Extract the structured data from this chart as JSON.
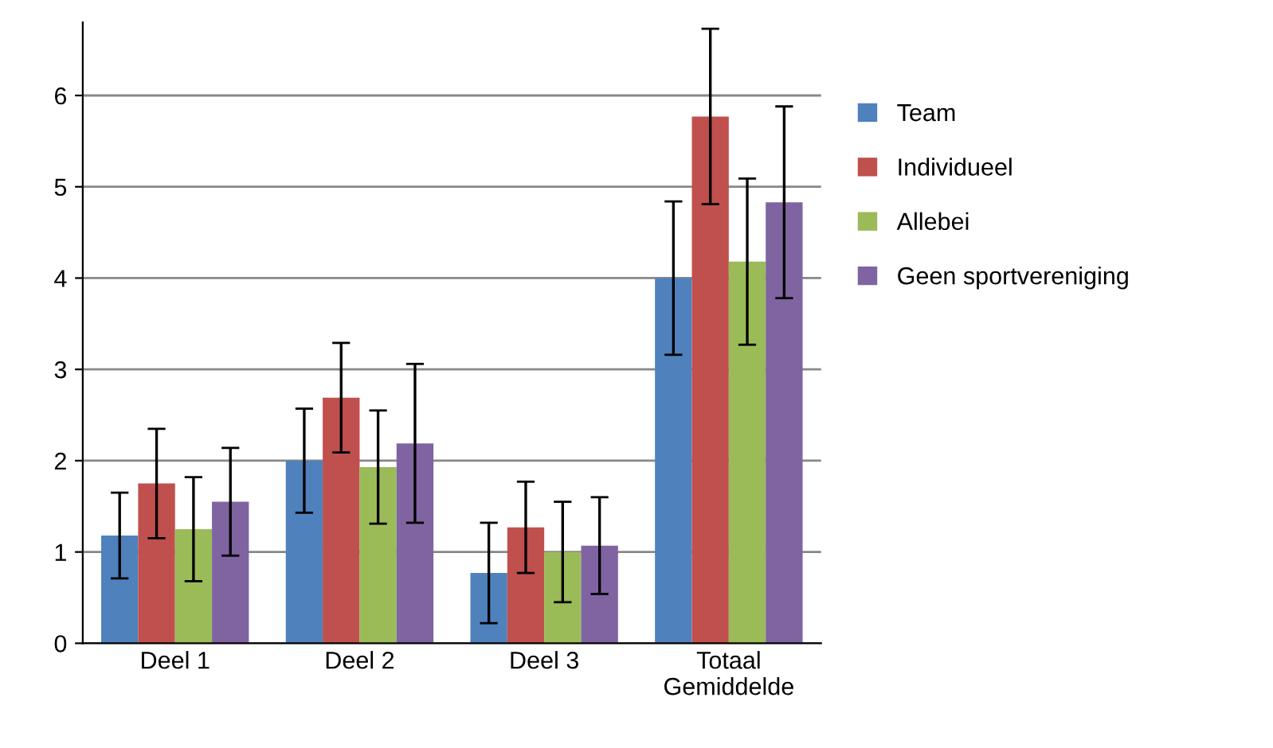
{
  "chart_data": {
    "type": "bar",
    "categories": [
      "Deel 1",
      "Deel 2",
      "Deel 3",
      "Totaal\nGemiddelde"
    ],
    "series": [
      {
        "name": "Team",
        "color": "#4f81bd",
        "values": [
          1.18,
          2.0,
          0.77,
          4.0
        ],
        "errors": [
          0.47,
          0.57,
          0.55,
          0.84
        ]
      },
      {
        "name": "Individueel",
        "color": "#c0504d",
        "values": [
          1.75,
          2.69,
          1.27,
          5.77
        ],
        "errors": [
          0.6,
          0.6,
          0.5,
          0.96
        ]
      },
      {
        "name": "Allebei",
        "color": "#9bbb59",
        "values": [
          1.25,
          1.93,
          1.0,
          4.18
        ],
        "errors": [
          0.57,
          0.62,
          0.55,
          0.91
        ]
      },
      {
        "name": "Geen sportvereniging",
        "color": "#8064a2",
        "values": [
          1.55,
          2.19,
          1.07,
          4.83
        ],
        "errors": [
          0.59,
          0.87,
          0.53,
          1.05
        ]
      }
    ],
    "ylim": [
      0,
      6.8
    ],
    "yticks": [
      0,
      1,
      2,
      3,
      4,
      5,
      6
    ],
    "grid": "y",
    "legend": "right"
  }
}
